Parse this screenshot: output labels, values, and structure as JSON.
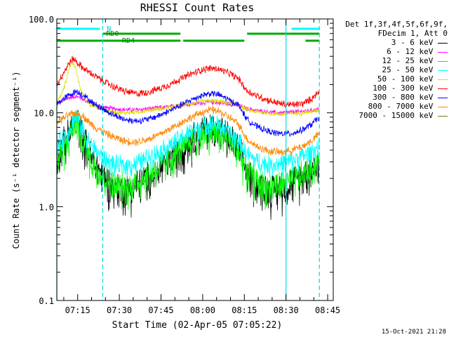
{
  "chart_data": {
    "type": "line",
    "title": "RHESSI Count Rates",
    "xlabel": "Start Time (02-Apr-05 07:05:22)",
    "ylabel": "Count Rate (s⁻¹ detector segment⁻¹)",
    "yscale": "log",
    "ylim": [
      0.1,
      100
    ],
    "xlim_minutes": [
      7.5,
      102
    ],
    "x_ticks": [
      {
        "label": "07:15",
        "minute": 15
      },
      {
        "label": "07:30",
        "minute": 30
      },
      {
        "label": "07:45",
        "minute": 45
      },
      {
        "label": "08:00",
        "minute": 60
      },
      {
        "label": "08:15",
        "minute": 75
      },
      {
        "label": "08:30",
        "minute": 90
      },
      {
        "label": "08:45",
        "minute": 105
      }
    ],
    "y_ticks": [
      {
        "label": "0.1",
        "value": 0.1
      },
      {
        "label": "1.0",
        "value": 1.0
      },
      {
        "label": "10.0",
        "value": 10.0
      },
      {
        "label": "100.0",
        "value": 100.0
      }
    ],
    "legend_header": [
      "Det 1f,3f,4f,5f,6f,9f,",
      "FDecim 1, Att 0"
    ],
    "series": [
      {
        "name": "3 - 6 keV",
        "color": "#000000",
        "points": [
          [
            7.5,
            3.6
          ],
          [
            12,
            6.0
          ],
          [
            14.5,
            9.0
          ],
          [
            17,
            5.5
          ],
          [
            20,
            3.2
          ],
          [
            24,
            2.2
          ],
          [
            28,
            1.6
          ],
          [
            32,
            1.5
          ],
          [
            36,
            1.7
          ],
          [
            40,
            2.0
          ],
          [
            44,
            2.4
          ],
          [
            48,
            3.0
          ],
          [
            52,
            4.0
          ],
          [
            56,
            5.3
          ],
          [
            60,
            6.6
          ],
          [
            63,
            7.0
          ],
          [
            66,
            6.6
          ],
          [
            70,
            5.2
          ],
          [
            73,
            4.2
          ],
          [
            76,
            2.3
          ],
          [
            80,
            1.7
          ],
          [
            84,
            1.5
          ],
          [
            88,
            1.6
          ],
          [
            92,
            1.8
          ],
          [
            96,
            2.2
          ],
          [
            99,
            2.5
          ],
          [
            102,
            3.0
          ]
        ]
      },
      {
        "name": "6 - 12 keV",
        "color": "#ff00ff",
        "points": [
          [
            7.5,
            12.5
          ],
          [
            12,
            14.5
          ],
          [
            14.5,
            15.0
          ],
          [
            17,
            14.0
          ],
          [
            20,
            12.5
          ],
          [
            24,
            11.5
          ],
          [
            28,
            11.0
          ],
          [
            32,
            10.8
          ],
          [
            36,
            10.8
          ],
          [
            40,
            11.0
          ],
          [
            44,
            11.3
          ],
          [
            48,
            11.6
          ],
          [
            52,
            12.0
          ],
          [
            56,
            12.4
          ],
          [
            60,
            12.8
          ],
          [
            63,
            13.0
          ],
          [
            66,
            12.8
          ],
          [
            70,
            12.4
          ],
          [
            73,
            12.0
          ],
          [
            76,
            11.0
          ],
          [
            80,
            10.5
          ],
          [
            84,
            10.2
          ],
          [
            88,
            10.0
          ],
          [
            92,
            10.2
          ],
          [
            96,
            10.4
          ],
          [
            99,
            10.6
          ],
          [
            102,
            11.0
          ]
        ]
      },
      {
        "name": "12 - 25 keV",
        "color": "#00ff00",
        "points": [
          [
            7.5,
            3.0
          ],
          [
            12,
            5.5
          ],
          [
            14.5,
            8.5
          ],
          [
            17,
            5.0
          ],
          [
            20,
            3.0
          ],
          [
            24,
            2.1
          ],
          [
            28,
            1.7
          ],
          [
            32,
            1.6
          ],
          [
            36,
            1.8
          ],
          [
            40,
            2.1
          ],
          [
            44,
            2.6
          ],
          [
            48,
            3.2
          ],
          [
            52,
            4.0
          ],
          [
            56,
            5.0
          ],
          [
            60,
            6.0
          ],
          [
            63,
            6.5
          ],
          [
            66,
            6.0
          ],
          [
            70,
            4.8
          ],
          [
            73,
            4.0
          ],
          [
            76,
            2.4
          ],
          [
            80,
            1.8
          ],
          [
            84,
            1.6
          ],
          [
            88,
            1.7
          ],
          [
            92,
            1.9
          ],
          [
            96,
            2.2
          ],
          [
            99,
            2.6
          ],
          [
            102,
            3.2
          ]
        ]
      },
      {
        "name": "25 - 50 keV",
        "color": "#00ffff",
        "points": [
          [
            7.5,
            4.5
          ],
          [
            12,
            6.5
          ],
          [
            14.5,
            9.5
          ],
          [
            17,
            6.5
          ],
          [
            20,
            4.5
          ],
          [
            24,
            3.3
          ],
          [
            28,
            2.8
          ],
          [
            32,
            2.7
          ],
          [
            36,
            2.9
          ],
          [
            40,
            3.3
          ],
          [
            44,
            3.8
          ],
          [
            48,
            4.5
          ],
          [
            52,
            5.3
          ],
          [
            56,
            6.3
          ],
          [
            60,
            7.3
          ],
          [
            63,
            7.8
          ],
          [
            66,
            7.3
          ],
          [
            70,
            6.0
          ],
          [
            73,
            5.0
          ],
          [
            76,
            3.6
          ],
          [
            80,
            3.0
          ],
          [
            84,
            2.8
          ],
          [
            88,
            2.9
          ],
          [
            92,
            3.1
          ],
          [
            96,
            3.5
          ],
          [
            99,
            3.8
          ],
          [
            102,
            4.3
          ]
        ]
      },
      {
        "name": "50 - 100 keV",
        "color": "#dddd00",
        "points": [
          [
            7.5,
            12.5
          ],
          [
            10,
            18
          ],
          [
            12,
            30
          ],
          [
            13,
            36
          ],
          [
            14.5,
            28
          ],
          [
            16,
            18
          ],
          [
            18,
            13.5
          ],
          [
            20,
            12.0
          ],
          [
            24,
            10.8
          ],
          [
            28,
            10.2
          ],
          [
            32,
            10.0
          ],
          [
            36,
            10.2
          ],
          [
            40,
            10.6
          ],
          [
            44,
            11.0
          ],
          [
            48,
            11.5
          ],
          [
            52,
            12.0
          ],
          [
            56,
            12.6
          ],
          [
            60,
            13.2
          ],
          [
            63,
            13.5
          ],
          [
            66,
            13.2
          ],
          [
            70,
            12.5
          ],
          [
            73,
            12.0
          ],
          [
            76,
            10.8
          ],
          [
            80,
            10.2
          ],
          [
            84,
            9.9
          ],
          [
            88,
            9.7
          ],
          [
            92,
            9.8
          ],
          [
            96,
            10.0
          ],
          [
            99,
            10.3
          ],
          [
            102,
            10.8
          ]
        ]
      },
      {
        "name": "100 - 300 keV",
        "color": "#ff0000",
        "points": [
          [
            7.5,
            20
          ],
          [
            10,
            27
          ],
          [
            12,
            34
          ],
          [
            13.5,
            38
          ],
          [
            15,
            34
          ],
          [
            17,
            30
          ],
          [
            20,
            26
          ],
          [
            24,
            22
          ],
          [
            28,
            19
          ],
          [
            32,
            17
          ],
          [
            36,
            16
          ],
          [
            40,
            16.5
          ],
          [
            44,
            18
          ],
          [
            48,
            20
          ],
          [
            52,
            23
          ],
          [
            56,
            26
          ],
          [
            60,
            29
          ],
          [
            63,
            30
          ],
          [
            66,
            29
          ],
          [
            70,
            26
          ],
          [
            73,
            23
          ],
          [
            76,
            17
          ],
          [
            80,
            15
          ],
          [
            84,
            13.5
          ],
          [
            88,
            12.5
          ],
          [
            92,
            12.2
          ],
          [
            96,
            12.5
          ],
          [
            99,
            14
          ],
          [
            102,
            17
          ]
        ]
      },
      {
        "name": "300 - 800 keV",
        "color": "#0000ff",
        "points": [
          [
            7.5,
            12.5
          ],
          [
            12,
            15.5
          ],
          [
            14.5,
            17.0
          ],
          [
            17,
            15.5
          ],
          [
            20,
            13.0
          ],
          [
            24,
            11.0
          ],
          [
            28,
            9.5
          ],
          [
            32,
            8.5
          ],
          [
            36,
            8.2
          ],
          [
            40,
            8.5
          ],
          [
            44,
            9.3
          ],
          [
            48,
            10.5
          ],
          [
            52,
            12.0
          ],
          [
            56,
            13.8
          ],
          [
            60,
            15.5
          ],
          [
            63,
            16.2
          ],
          [
            66,
            15.5
          ],
          [
            70,
            13.5
          ],
          [
            73,
            12.0
          ],
          [
            76,
            8.5
          ],
          [
            80,
            7.0
          ],
          [
            84,
            6.3
          ],
          [
            88,
            6.0
          ],
          [
            92,
            6.0
          ],
          [
            96,
            6.6
          ],
          [
            99,
            7.5
          ],
          [
            102,
            9.0
          ]
        ]
      },
      {
        "name": "800 - 7000 keV",
        "color": "#ff8800",
        "points": [
          [
            7.5,
            8.0
          ],
          [
            12,
            9.5
          ],
          [
            14.5,
            10.0
          ],
          [
            17,
            9.2
          ],
          [
            20,
            7.5
          ],
          [
            24,
            6.3
          ],
          [
            28,
            5.5
          ],
          [
            32,
            5.0
          ],
          [
            36,
            4.9
          ],
          [
            40,
            5.2
          ],
          [
            44,
            5.8
          ],
          [
            48,
            6.7
          ],
          [
            52,
            7.8
          ],
          [
            56,
            9.0
          ],
          [
            60,
            10.2
          ],
          [
            63,
            10.8
          ],
          [
            66,
            10.3
          ],
          [
            70,
            8.8
          ],
          [
            73,
            7.5
          ],
          [
            76,
            5.2
          ],
          [
            80,
            4.3
          ],
          [
            84,
            3.9
          ],
          [
            88,
            3.8
          ],
          [
            92,
            4.0
          ],
          [
            96,
            4.4
          ],
          [
            99,
            5.0
          ],
          [
            102,
            6.0
          ]
        ]
      },
      {
        "name": "7000 - 15000 keV",
        "color": "#7a7a1a",
        "points": []
      }
    ],
    "annotations": [
      {
        "label": "N",
        "color": "#00ffff",
        "segments": [
          [
            7.5,
            23
          ],
          [
            92,
            102
          ]
        ]
      },
      {
        "label": "RD0",
        "color": "#00aa00",
        "segments": [
          [
            24,
            52
          ],
          [
            76,
            91
          ],
          [
            91,
            102
          ]
        ]
      },
      {
        "label": "RD4",
        "color": "#00aa00",
        "segments": [
          [
            7.5,
            52
          ],
          [
            53,
            75
          ],
          [
            97,
            102
          ]
        ]
      }
    ],
    "vlines_solid": [
      7.5,
      90
    ],
    "vlines_dashed": [
      24,
      102
    ]
  },
  "legend": {
    "header": [
      "Det 1f,3f,4f,5f,6f,9f,",
      "FDecim 1, Att 0"
    ]
  },
  "footer": {
    "timestamp": "15-Oct-2021 21:28"
  }
}
